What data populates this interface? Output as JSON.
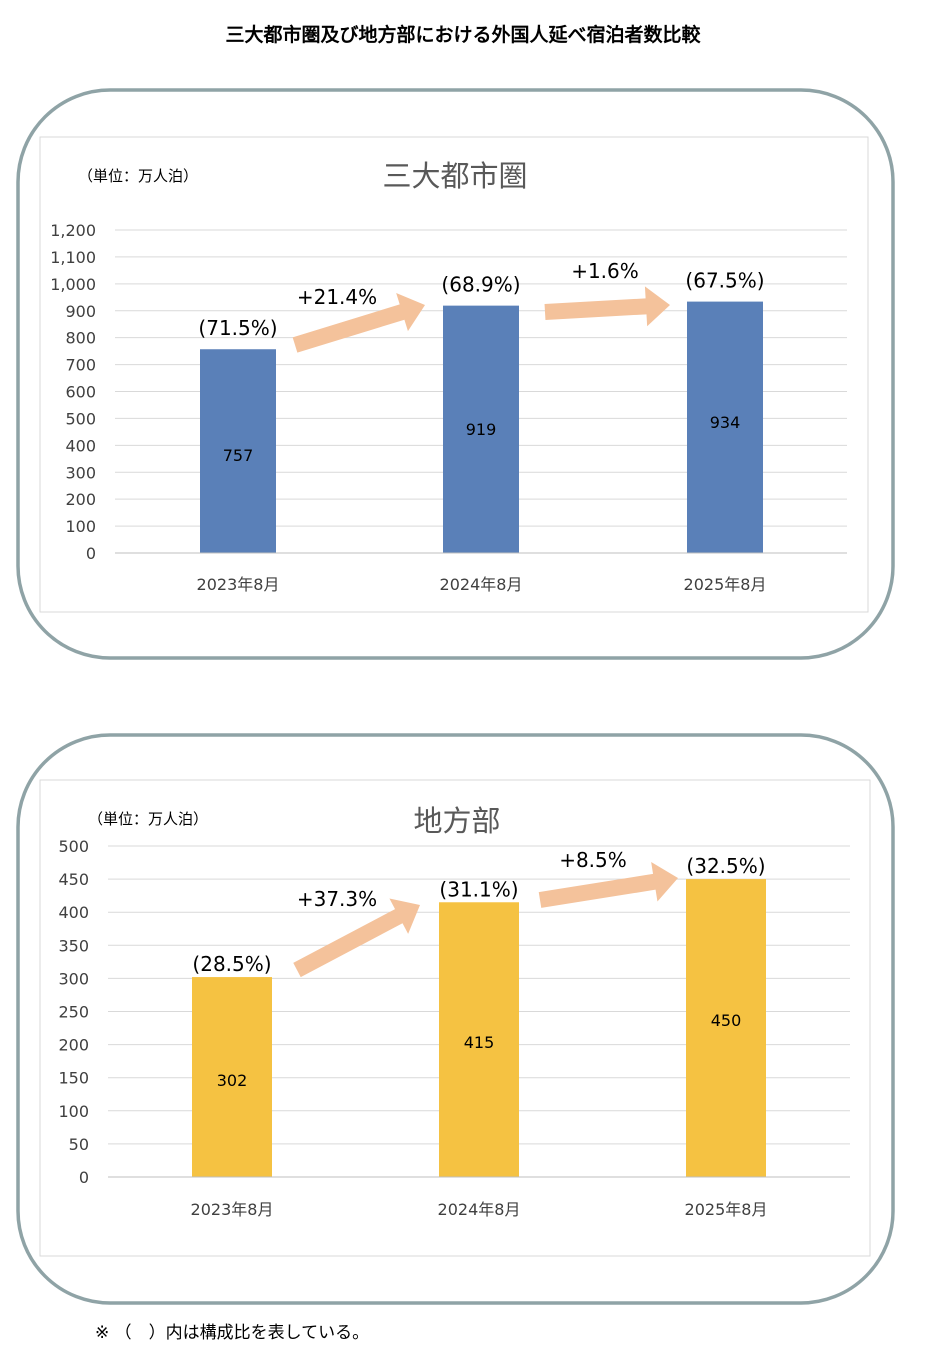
{
  "title": "三大都市圏及び地方部における外国人延べ宿泊者数比較",
  "footnote": "※ （　）内は構成比を表している。",
  "chart_data": [
    {
      "type": "bar",
      "title": "三大都市圏",
      "unit_label": "（単位：万人泊）",
      "categories": [
        "2023年8月",
        "2024年8月",
        "2025年8月"
      ],
      "values": [
        757,
        919,
        934
      ],
      "data_labels": [
        "757",
        "919",
        "934"
      ],
      "share_labels": [
        "(71.5%)",
        "(68.9%)",
        "(67.5%)"
      ],
      "growth_labels": [
        "+21.4%",
        "+1.6%"
      ],
      "ylim": [
        0,
        1200
      ],
      "yticks": [
        0,
        100,
        200,
        300,
        400,
        500,
        600,
        700,
        800,
        900,
        1000,
        1100,
        1200
      ],
      "ytick_labels": [
        "0",
        "100",
        "200",
        "300",
        "400",
        "500",
        "600",
        "700",
        "800",
        "900",
        "1,000",
        "1,100",
        "1,200"
      ],
      "grid": true,
      "bar_color": "#5a80b8",
      "arrow_color": "#f4c29b"
    },
    {
      "type": "bar",
      "title": "地方部",
      "unit_label": "（単位：万人泊）",
      "categories": [
        "2023年8月",
        "2024年8月",
        "2025年8月"
      ],
      "values": [
        302,
        415,
        450
      ],
      "data_labels": [
        "302",
        "415",
        "450"
      ],
      "share_labels": [
        "(28.5%)",
        "(31.1%)",
        "(32.5%)"
      ],
      "growth_labels": [
        "+37.3%",
        "+8.5%"
      ],
      "ylim": [
        0,
        500
      ],
      "yticks": [
        0,
        50,
        100,
        150,
        200,
        250,
        300,
        350,
        400,
        450,
        500
      ],
      "ytick_labels": [
        "0",
        "50",
        "100",
        "150",
        "200",
        "250",
        "300",
        "350",
        "400",
        "450",
        "500"
      ],
      "grid": true,
      "bar_color": "#f5c242",
      "arrow_color": "#f4c29b"
    }
  ]
}
